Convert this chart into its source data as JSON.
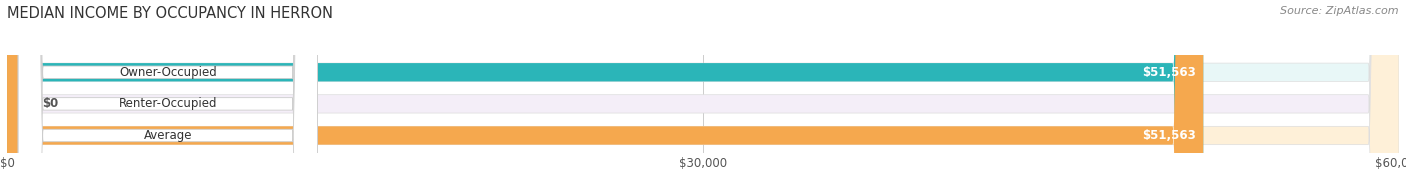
{
  "title": "MEDIAN INCOME BY OCCUPANCY IN HERRON",
  "source": "Source: ZipAtlas.com",
  "categories": [
    "Owner-Occupied",
    "Renter-Occupied",
    "Average"
  ],
  "values": [
    51563,
    0,
    51563
  ],
  "labels": [
    "$51,563",
    "$0",
    "$51,563"
  ],
  "bar_colors": [
    "#2bb5b8",
    "#c9aed6",
    "#f5a84e"
  ],
  "bar_bg_colors": [
    "#e8f7f7",
    "#f4eef8",
    "#fef0d8"
  ],
  "max_value": 60000,
  "xticks": [
    0,
    30000,
    60000
  ],
  "xtick_labels": [
    "$0",
    "$30,000",
    "$60,000"
  ],
  "bar_height": 0.58,
  "title_fontsize": 10.5,
  "source_fontsize": 8,
  "label_fontsize": 8.5,
  "tick_fontsize": 8.5,
  "category_fontsize": 8.5
}
